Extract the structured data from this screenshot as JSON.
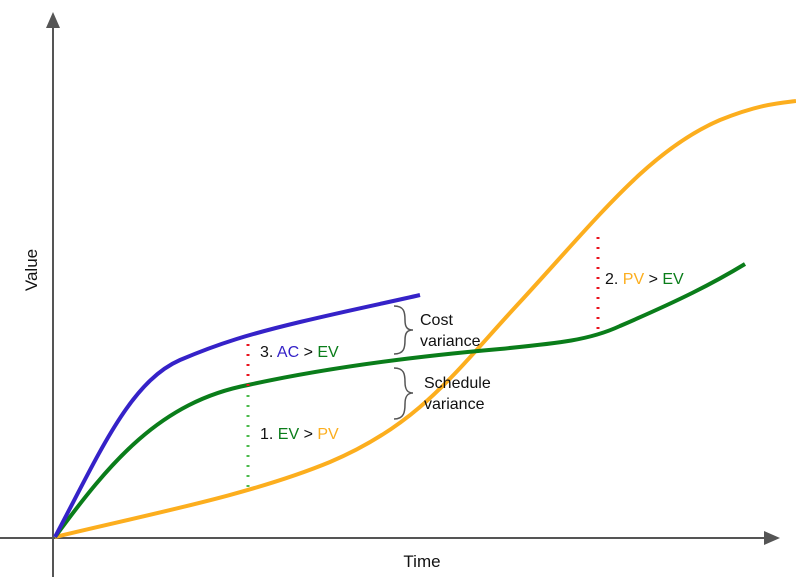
{
  "axes": {
    "x_label": "Time",
    "y_label": "Value"
  },
  "colors": {
    "pv": "#fcae1e",
    "ev": "#0a7d1a",
    "ac": "#3522c8",
    "variance_marker": "#e8141e",
    "ev_marker": "#4cbb4c",
    "text": "#111111",
    "brace": "#555555"
  },
  "annotations": {
    "a1": {
      "num": "1. ",
      "left": "EV",
      "op": " > ",
      "right": "PV"
    },
    "a2": {
      "num": "2. ",
      "left": "PV",
      "op": " > ",
      "right": "EV"
    },
    "a3": {
      "num": "3. ",
      "left": "AC",
      "op": " > ",
      "right": "EV"
    }
  },
  "braces": {
    "cost": {
      "line1": "Cost",
      "line2": "variance"
    },
    "schedule": {
      "line1": "Schedule",
      "line2": "variance"
    }
  }
}
